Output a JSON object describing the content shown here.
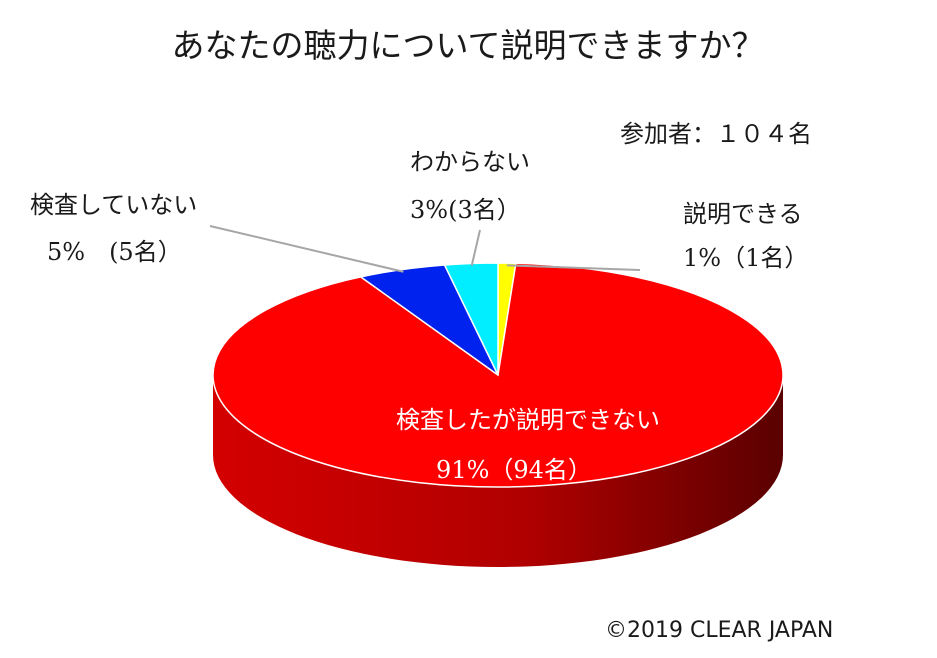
{
  "chart_data": {
    "type": "pie",
    "title": "あなたの聴力について説明できますか？",
    "participants": "参加者：１０４名",
    "copyright": "©2019 CLEAR JAPAN",
    "slices": [
      {
        "id": "explain",
        "label": "説明できる",
        "value_text": "1%（1名）",
        "percent": 1,
        "count": 1,
        "color": "#ffff00"
      },
      {
        "id": "cannot-explain",
        "label": "検査したが説明できない",
        "value_text": "91%（94名）",
        "percent": 91,
        "count": 94,
        "color": "#ff0000"
      },
      {
        "id": "not-tested",
        "label": "検査していない",
        "value_text": "5%　(5名）",
        "percent": 5,
        "count": 5,
        "color": "#0022ee"
      },
      {
        "id": "unknown",
        "label": "わからない",
        "value_text": "3%(3名）",
        "percent": 3,
        "count": 3,
        "color": "#00eeff"
      }
    ]
  }
}
